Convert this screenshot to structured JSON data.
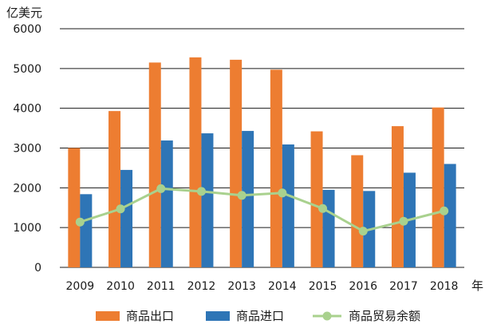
{
  "chart_data": {
    "type": "bar",
    "ylabel": "亿美元",
    "xunit": "年",
    "categories": [
      "2009",
      "2010",
      "2011",
      "2012",
      "2013",
      "2014",
      "2015",
      "2016",
      "2017",
      "2018"
    ],
    "ylim": [
      0,
      6000
    ],
    "yticks": [
      0,
      1000,
      2000,
      3000,
      4000,
      5000,
      6000
    ],
    "grid": true,
    "legend_position": "bottom",
    "series": [
      {
        "name": "商品出口",
        "kind": "bar",
        "color": "#ED7D31",
        "values": [
          3000,
          3930,
          5150,
          5280,
          5220,
          4970,
          3420,
          2820,
          3550,
          4020
        ]
      },
      {
        "name": "商品进口",
        "kind": "bar",
        "color": "#2E75B6",
        "values": [
          1840,
          2450,
          3190,
          3370,
          3430,
          3090,
          1950,
          1920,
          2380,
          2600
        ]
      },
      {
        "name": "商品贸易余额",
        "kind": "line",
        "color": "#A9D18E",
        "values": [
          1140,
          1470,
          1980,
          1910,
          1810,
          1870,
          1480,
          910,
          1160,
          1420
        ]
      }
    ]
  }
}
